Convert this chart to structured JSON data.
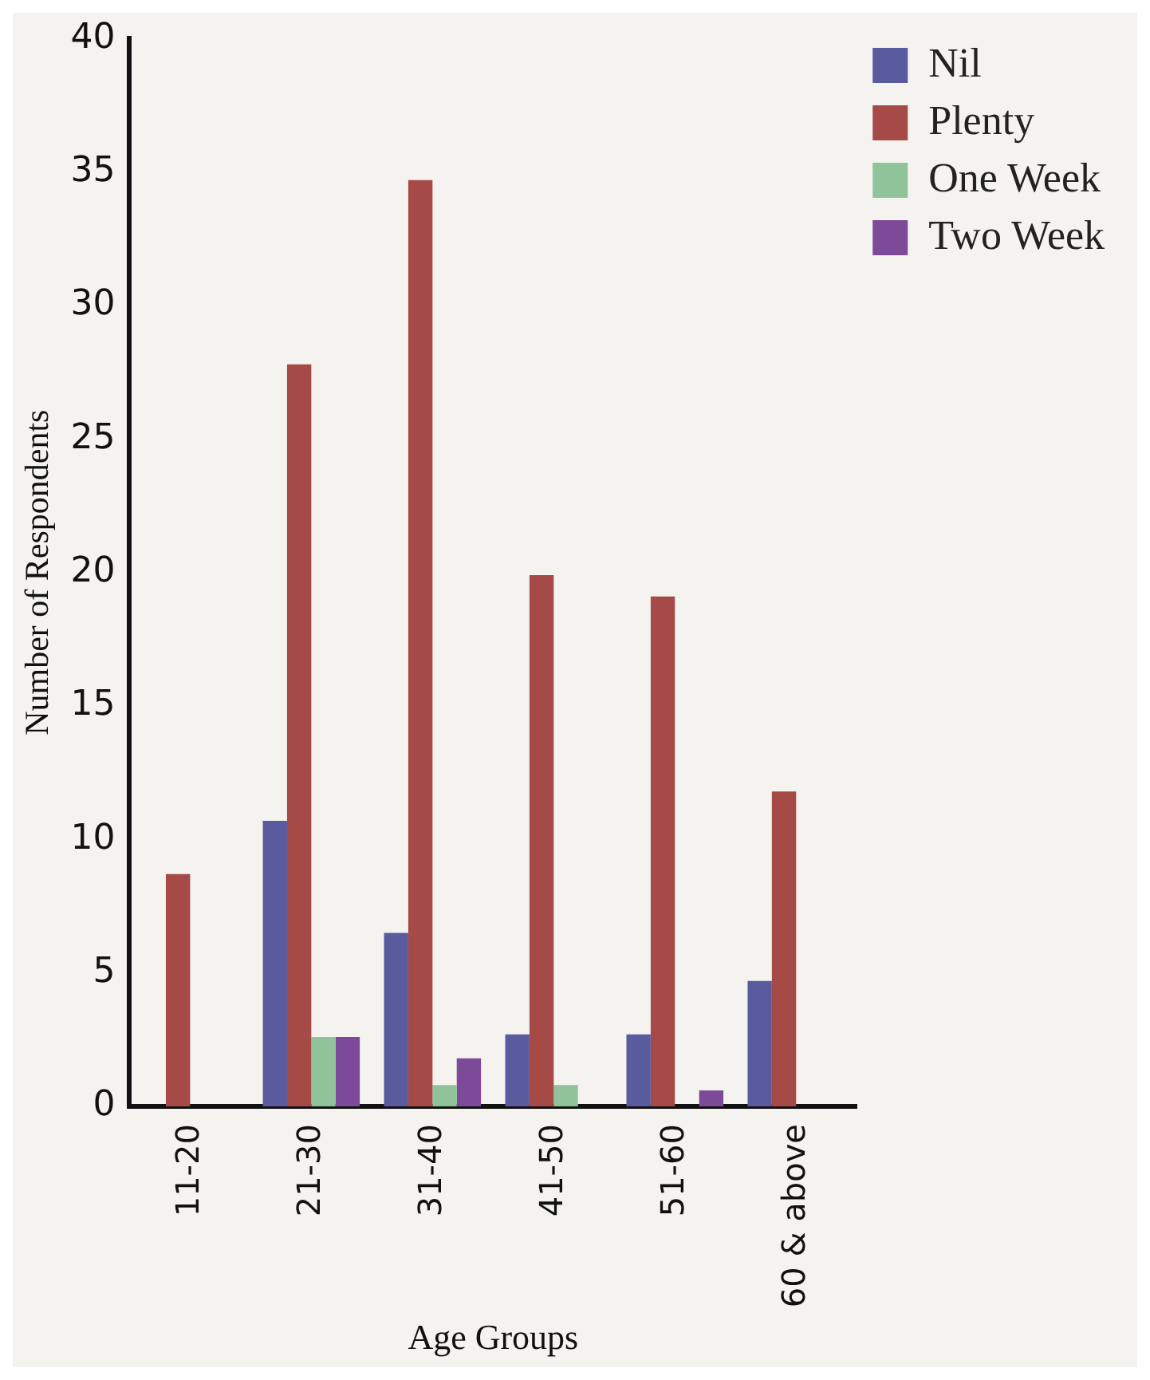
{
  "chart_data": {
    "type": "bar",
    "xlabel": "Age Groups",
    "ylabel": "Number of Respondents",
    "categories": [
      "11-20",
      "21-30",
      "31-40",
      "41-50",
      "51-60",
      "60 & above"
    ],
    "series": [
      {
        "name": "Nil",
        "color": "#5a5a9e",
        "values": [
          0,
          10.7,
          6.5,
          2.7,
          2.7,
          4.7
        ]
      },
      {
        "name": "Plenty",
        "color": "#a64a48",
        "values": [
          8.7,
          27.8,
          34.7,
          19.9,
          19.1,
          11.8
        ]
      },
      {
        "name": "One Week",
        "color": "#8fc49a",
        "values": [
          0,
          2.6,
          0.8,
          0.8,
          0,
          0
        ]
      },
      {
        "name": "Two Week",
        "color": "#7d4a9a",
        "values": [
          0,
          2.6,
          1.8,
          0,
          0.6,
          0
        ]
      }
    ],
    "ylim": [
      0,
      40
    ],
    "yticks": [
      0,
      5,
      10,
      15,
      20,
      25,
      30,
      35,
      40
    ],
    "grid": false,
    "legend": "top right"
  }
}
